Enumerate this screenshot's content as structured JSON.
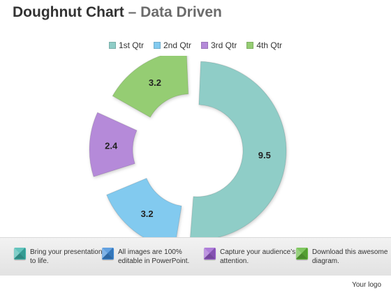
{
  "title": {
    "main": "Doughnut Chart",
    "separator": " – ",
    "sub": "Data Driven"
  },
  "chart_data": {
    "type": "doughnut",
    "categories": [
      "1st Qtr",
      "2nd Qtr",
      "3rd Qtr",
      "4th Qtr"
    ],
    "values": [
      9.5,
      3.2,
      2.4,
      3.2
    ],
    "data_labels": [
      "9.5",
      "3.2",
      "2.4",
      "3.2"
    ],
    "colors": [
      "#8fcdc7",
      "#82caef",
      "#b58ad9",
      "#95cd73"
    ],
    "legend_position": "top",
    "exploded": true
  },
  "footer": {
    "tips": [
      {
        "text": "Bring your presentation to life.",
        "icon": "teal-cube-icon",
        "color": "#3fb6ad"
      },
      {
        "text": "All images are 100% editable in PowerPoint.",
        "icon": "blue-cube-icon",
        "color": "#3d8ad9"
      },
      {
        "text": "Capture your audience’s attention.",
        "icon": "purple-cube-icon",
        "color": "#9b5fd0"
      },
      {
        "text": "Download this awesome diagram.",
        "icon": "green-cube-icon",
        "color": "#62b93b"
      }
    ],
    "logo": "Your logo"
  }
}
